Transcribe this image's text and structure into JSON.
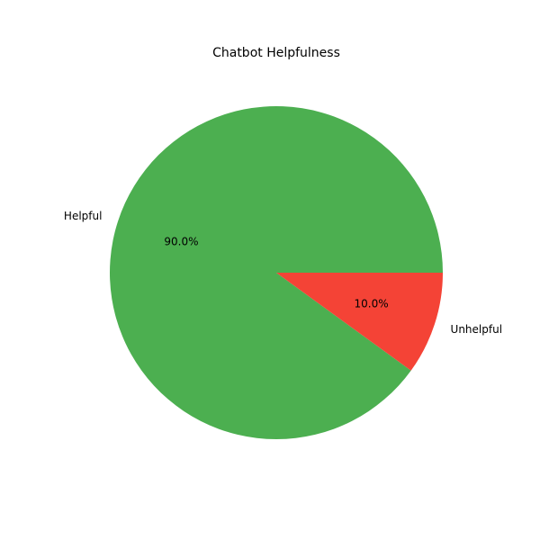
{
  "chart_data": {
    "type": "pie",
    "title": "Chatbot Helpfulness",
    "categories": [
      "Helpful",
      "Unhelpful"
    ],
    "values": [
      90,
      10
    ],
    "percent_labels": [
      "90.0%",
      "10.0%"
    ],
    "colors": [
      "#4caf50",
      "#f44336"
    ],
    "start_angle_deg": 0,
    "direction": "counterclockwise",
    "legend": "none"
  }
}
